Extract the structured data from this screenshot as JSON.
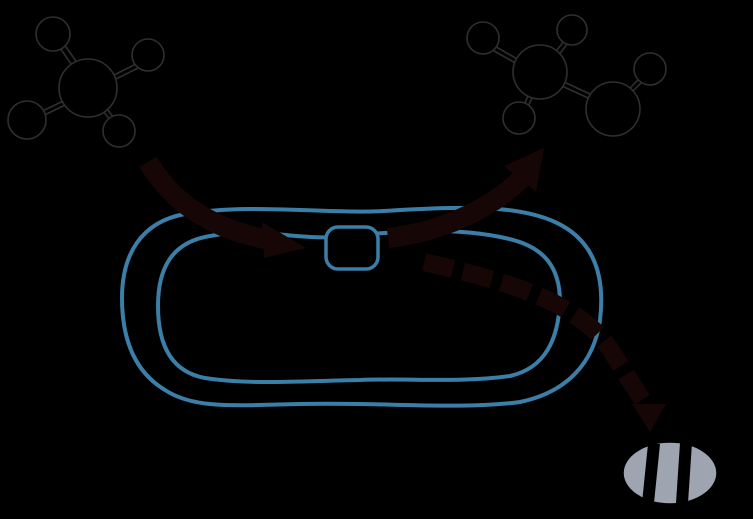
{
  "colors": {
    "background": "#000000",
    "membrane": "#3b7fa8",
    "molecule_stroke": "#2f2f2f",
    "arrow": "#160606",
    "pill_fill": "#9ea4b0",
    "pill_band": "#000000"
  },
  "parts": [
    {
      "id": "substrate-molecule",
      "icon": "four-atom-molecule"
    },
    {
      "id": "product-molecule",
      "icon": "five-atom-molecule"
    },
    {
      "id": "cell",
      "icon": "double-membrane-oval"
    },
    {
      "id": "enzyme",
      "icon": "small-rounded-square"
    },
    {
      "id": "byproduct",
      "icon": "banded-pill"
    }
  ]
}
